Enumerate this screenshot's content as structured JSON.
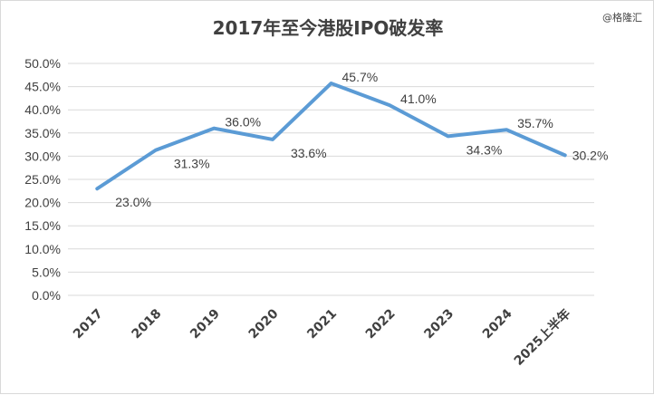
{
  "chart_data": {
    "type": "line",
    "title": "2017年至今港股IPO破发率",
    "watermark": "@格隆汇",
    "xlabel": "",
    "ylabel": "",
    "categories": [
      "2017",
      "2018",
      "2019",
      "2020",
      "2021",
      "2022",
      "2023",
      "2024",
      "2025上半年"
    ],
    "series": [
      {
        "values": [
          23.0,
          31.3,
          36.0,
          33.6,
          45.7,
          41.0,
          34.3,
          35.7,
          30.2
        ],
        "labels": [
          "23.0%",
          "31.3%",
          "36.0%",
          "33.6%",
          "45.7%",
          "41.0%",
          "34.3%",
          "35.7%",
          "30.2%"
        ],
        "color": "#5b9bd5"
      }
    ],
    "ylim": [
      0,
      50
    ],
    "yticks": [
      "0.0%",
      "5.0%",
      "10.0%",
      "15.0%",
      "20.0%",
      "25.0%",
      "30.0%",
      "35.0%",
      "40.0%",
      "45.0%",
      "50.0%"
    ],
    "grid": true,
    "legend": "none",
    "gridline_color": "#d9d9d9"
  }
}
